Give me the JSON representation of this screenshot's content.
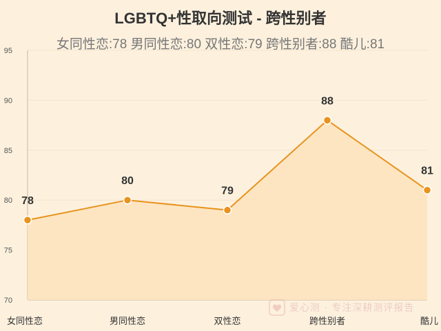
{
  "chart_data": {
    "type": "area",
    "title": "LGBTQ+性取向测试 - 跨性别者",
    "subtitle": "女同性恋:78 男同性恋:80 双性恋:79 跨性别者:88 酷儿:81",
    "categories": [
      "女同性恋",
      "男同性恋",
      "双性恋",
      "跨性别者",
      "酷儿"
    ],
    "values": [
      78,
      80,
      79,
      88,
      81
    ],
    "ylim": [
      70,
      95
    ],
    "yticks": [
      70,
      75,
      80,
      85,
      90,
      95
    ],
    "grid": true,
    "legend": "none",
    "colors": {
      "line": "#e8931e",
      "area": "#fde3bd",
      "marker": "#e8931e",
      "grid": "#f3e3cb",
      "axis": "#c9b89f",
      "label": "#333333"
    }
  },
  "watermark": {
    "text": "爱心测 · 专注深耕测评报告",
    "icon": "heart-icon"
  }
}
